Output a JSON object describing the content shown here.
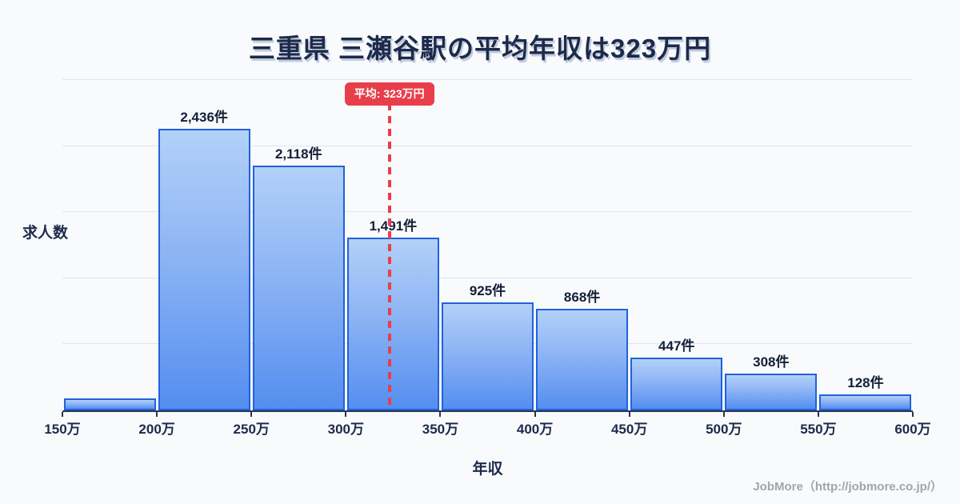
{
  "title": "三重県 三瀬谷駅の平均年収は323万円",
  "footer": {
    "credit": "JobMore（http://jobmore.co.jp/）"
  },
  "colors": {
    "background": "#f8fafc",
    "title_text": "#1d2a4a",
    "bar_border": "#2161dd",
    "bar_fill_top": "#b2d1f8",
    "bar_fill_bottom": "#548ef0",
    "gridline": "#dde4f0",
    "axis_line": "#2b3553",
    "average_red": "#e83e4b",
    "footer_gray": "#a0a6ae"
  },
  "chart_data": {
    "type": "bar",
    "title": "三重県 三瀬谷駅の平均年収は323万円",
    "xlabel": "年収",
    "ylabel": "求人数",
    "bin_edges_man_yen": [
      150,
      200,
      250,
      300,
      350,
      400,
      450,
      500,
      550,
      600
    ],
    "x_tick_labels": [
      "150万",
      "200万",
      "250万",
      "300万",
      "350万",
      "400万",
      "450万",
      "500万",
      "550万",
      "600万"
    ],
    "values": [
      90,
      2436,
      2118,
      1491,
      925,
      868,
      447,
      308,
      128
    ],
    "bar_labels": [
      "",
      "2,436件",
      "2,118件",
      "1,491件",
      "925件",
      "868件",
      "447件",
      "308件",
      "128件"
    ],
    "first_bin_value_estimated": true,
    "average_line": {
      "x": 323,
      "label": "平均: 323万円",
      "style": "dashed",
      "color": "#e83e4b"
    },
    "ylim": [
      0,
      2900
    ],
    "grid": true,
    "legend": "none"
  }
}
